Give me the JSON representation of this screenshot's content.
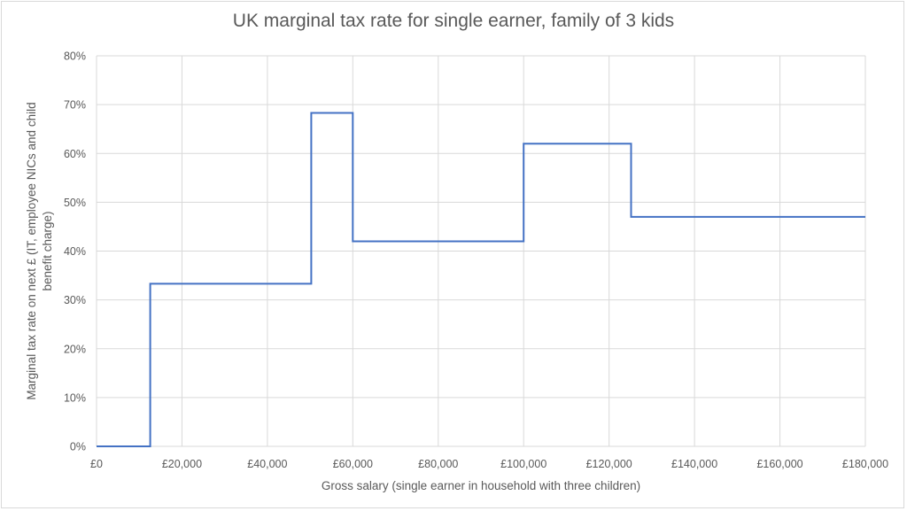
{
  "chart_data": {
    "type": "line",
    "title": "UK marginal tax rate for single earner, family of 3 kids",
    "xlabel": "Gross salary (single earner in household with three children)",
    "ylabel_lines": [
      "Marginal tax rate on next £ (IT, employee NICs and child",
      "benefit charge)"
    ],
    "xlim": [
      0,
      180000
    ],
    "ylim": [
      0,
      0.8
    ],
    "x_ticks": [
      0,
      20000,
      40000,
      60000,
      80000,
      100000,
      120000,
      140000,
      160000,
      180000
    ],
    "x_tick_labels": [
      "£0",
      "£20,000",
      "£40,000",
      "£60,000",
      "£80,000",
      "£100,000",
      "£120,000",
      "£140,000",
      "£160,000",
      "£180,000"
    ],
    "y_ticks": [
      0,
      0.1,
      0.2,
      0.3,
      0.4,
      0.5,
      0.6,
      0.7,
      0.8
    ],
    "y_tick_labels": [
      "0%",
      "10%",
      "20%",
      "30%",
      "40%",
      "50%",
      "60%",
      "70%",
      "80%"
    ],
    "grid": true,
    "series": [
      {
        "color": "#4472c4",
        "x": [
          0,
          12570,
          12570,
          50270,
          50270,
          60000,
          60000,
          100000,
          100000,
          125140,
          125140,
          180000
        ],
        "y": [
          0,
          0,
          0.333,
          0.333,
          0.683,
          0.683,
          0.42,
          0.42,
          0.62,
          0.62,
          0.47,
          0.47
        ]
      }
    ]
  }
}
